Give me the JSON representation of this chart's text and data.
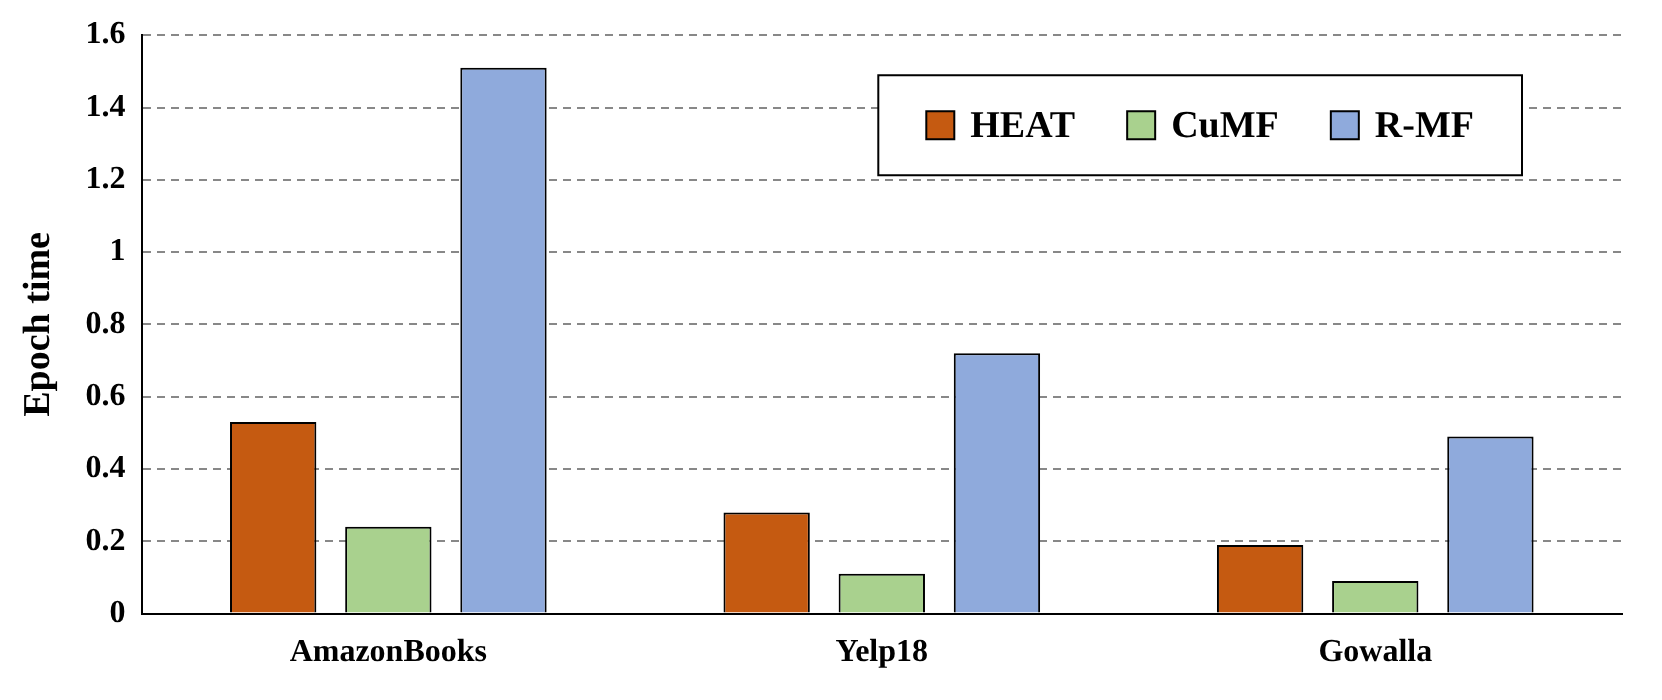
{
  "chart_data": {
    "type": "bar",
    "ylabel": "Epoch time",
    "categories": [
      "AmazonBooks",
      "Yelp18",
      "Gowalla"
    ],
    "series": [
      {
        "name": "HEAT",
        "color": "#c55a11",
        "values": [
          0.53,
          0.28,
          0.19
        ]
      },
      {
        "name": "CuMF",
        "color": "#a9d18e",
        "values": [
          0.24,
          0.11,
          0.09
        ]
      },
      {
        "name": "R-MF",
        "color": "#8faadc",
        "values": [
          1.51,
          0.72,
          0.49
        ]
      }
    ],
    "ylim": [
      0,
      1.6
    ],
    "yticks": [
      0,
      0.2,
      0.4,
      0.6,
      0.8,
      1,
      1.2,
      1.4,
      1.6
    ],
    "grid": "y",
    "legend": "top right"
  }
}
